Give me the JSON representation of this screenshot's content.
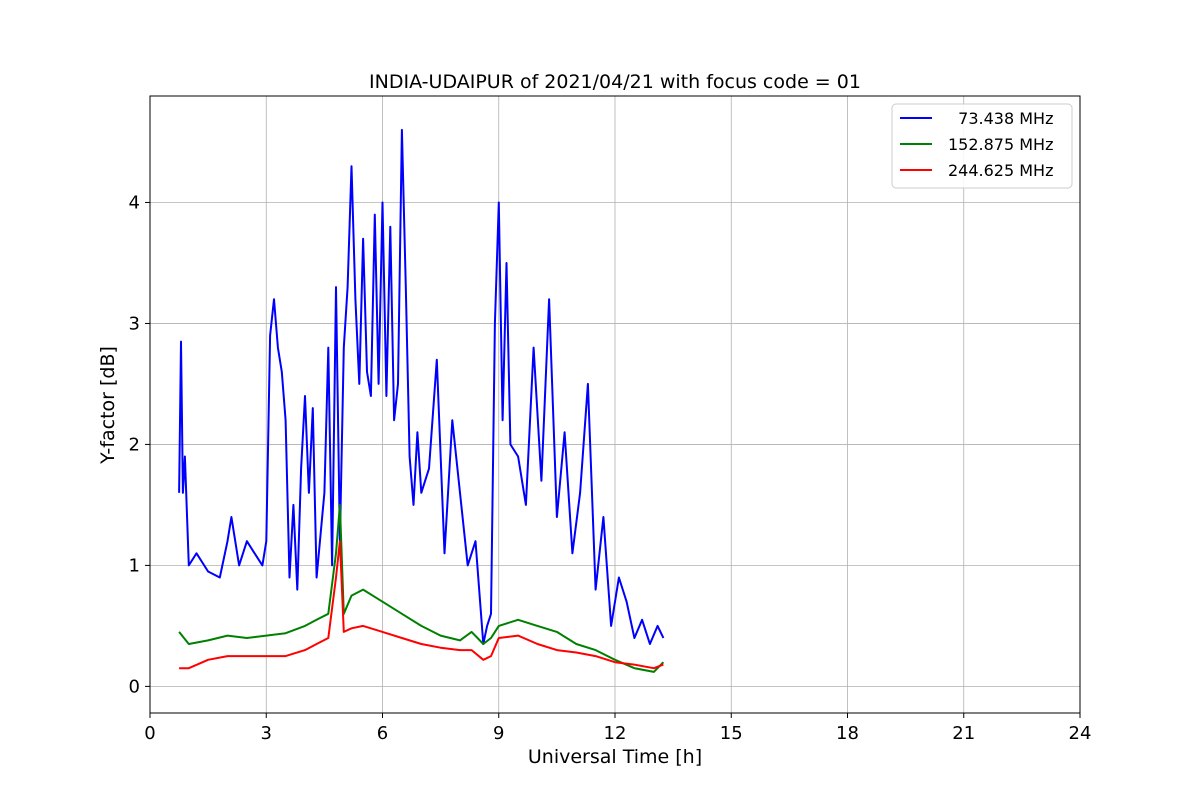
{
  "chart_data": {
    "type": "line",
    "title": "INDIA-UDAIPUR of 2021/04/21 with focus code = 01",
    "xlabel": "Universal Time [h]",
    "ylabel": "Y-factor [dB]",
    "xlim": [
      0,
      24
    ],
    "ylim": [
      -0.22,
      4.88
    ],
    "xticks": [
      0,
      3,
      6,
      9,
      12,
      15,
      18,
      21,
      24
    ],
    "yticks": [
      0,
      1,
      2,
      3,
      4
    ],
    "grid": true,
    "legend_position": "top-right",
    "series": [
      {
        "name": "  73.438 MHz",
        "color": "#0000ff",
        "x": [
          0.75,
          0.8,
          0.85,
          0.9,
          1.0,
          1.2,
          1.5,
          1.8,
          2.0,
          2.1,
          2.3,
          2.5,
          2.7,
          2.9,
          3.0,
          3.1,
          3.2,
          3.3,
          3.4,
          3.5,
          3.6,
          3.7,
          3.8,
          3.9,
          4.0,
          4.1,
          4.2,
          4.3,
          4.5,
          4.6,
          4.7,
          4.8,
          4.9,
          5.0,
          5.1,
          5.2,
          5.3,
          5.4,
          5.5,
          5.6,
          5.7,
          5.8,
          5.9,
          6.0,
          6.1,
          6.2,
          6.3,
          6.4,
          6.5,
          6.6,
          6.7,
          6.8,
          6.9,
          7.0,
          7.2,
          7.4,
          7.6,
          7.8,
          8.0,
          8.2,
          8.4,
          8.6,
          8.7,
          8.8,
          8.9,
          9.0,
          9.1,
          9.2,
          9.3,
          9.5,
          9.7,
          9.9,
          10.1,
          10.3,
          10.5,
          10.7,
          10.9,
          11.1,
          11.3,
          11.5,
          11.7,
          11.9,
          12.1,
          12.3,
          12.5,
          12.7,
          12.9,
          13.1,
          13.25
        ],
        "y": [
          1.6,
          2.85,
          1.6,
          1.9,
          1.0,
          1.1,
          0.95,
          0.9,
          1.2,
          1.4,
          1.0,
          1.2,
          1.1,
          1.0,
          1.2,
          2.9,
          3.2,
          2.8,
          2.6,
          2.2,
          0.9,
          1.5,
          0.8,
          1.8,
          2.4,
          1.6,
          2.3,
          0.9,
          1.6,
          2.8,
          1.0,
          3.3,
          1.2,
          2.8,
          3.3,
          4.3,
          3.2,
          2.5,
          3.7,
          2.6,
          2.4,
          3.9,
          2.5,
          4.0,
          2.4,
          3.8,
          2.2,
          2.5,
          4.6,
          3.3,
          1.9,
          1.5,
          2.1,
          1.6,
          1.8,
          2.7,
          1.1,
          2.2,
          1.6,
          1.0,
          1.2,
          0.35,
          0.5,
          0.6,
          3.0,
          4.0,
          2.2,
          3.5,
          2.0,
          1.9,
          1.5,
          2.8,
          1.7,
          3.2,
          1.4,
          2.1,
          1.1,
          1.6,
          2.5,
          0.8,
          1.4,
          0.5,
          0.9,
          0.7,
          0.4,
          0.55,
          0.35,
          0.5,
          0.4
        ]
      },
      {
        "name": "152.875 MHz",
        "color": "#008000",
        "x": [
          0.75,
          1.0,
          1.5,
          2.0,
          2.5,
          3.0,
          3.5,
          4.0,
          4.3,
          4.6,
          4.8,
          4.9,
          5.0,
          5.2,
          5.5,
          6.0,
          6.5,
          7.0,
          7.5,
          8.0,
          8.3,
          8.6,
          8.8,
          9.0,
          9.5,
          10.0,
          10.5,
          11.0,
          11.5,
          12.0,
          12.5,
          13.0,
          13.25
        ],
        "y": [
          0.45,
          0.35,
          0.38,
          0.42,
          0.4,
          0.42,
          0.44,
          0.5,
          0.55,
          0.6,
          1.1,
          1.5,
          0.6,
          0.75,
          0.8,
          0.7,
          0.6,
          0.5,
          0.42,
          0.38,
          0.45,
          0.35,
          0.4,
          0.5,
          0.55,
          0.5,
          0.45,
          0.35,
          0.3,
          0.22,
          0.15,
          0.12,
          0.2
        ]
      },
      {
        "name": "244.625 MHz",
        "color": "#ff0000",
        "x": [
          0.75,
          1.0,
          1.5,
          2.0,
          2.5,
          3.0,
          3.5,
          4.0,
          4.3,
          4.6,
          4.8,
          4.9,
          5.0,
          5.2,
          5.5,
          6.0,
          6.5,
          7.0,
          7.5,
          8.0,
          8.3,
          8.6,
          8.8,
          9.0,
          9.5,
          10.0,
          10.5,
          11.0,
          11.5,
          12.0,
          12.5,
          13.0,
          13.25
        ],
        "y": [
          0.15,
          0.15,
          0.22,
          0.25,
          0.25,
          0.25,
          0.25,
          0.3,
          0.35,
          0.4,
          0.9,
          1.2,
          0.45,
          0.48,
          0.5,
          0.45,
          0.4,
          0.35,
          0.32,
          0.3,
          0.3,
          0.22,
          0.25,
          0.4,
          0.42,
          0.35,
          0.3,
          0.28,
          0.25,
          0.2,
          0.18,
          0.15,
          0.18
        ]
      }
    ]
  }
}
